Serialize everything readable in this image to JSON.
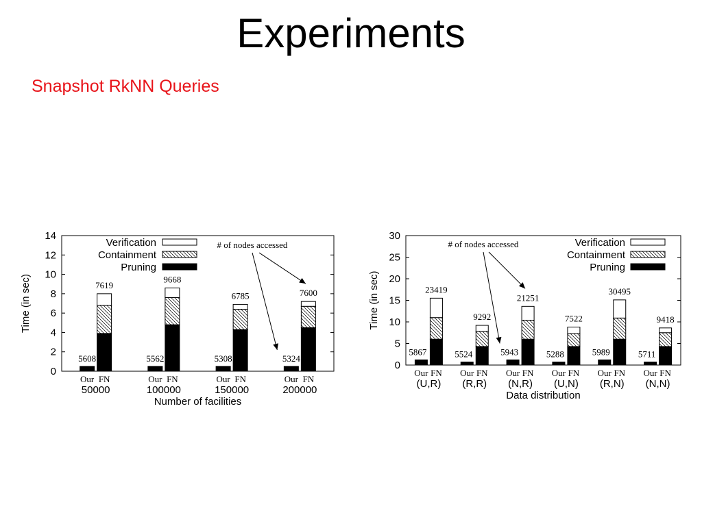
{
  "slide": {
    "title": "Experiments",
    "subtitle": "Snapshot RkNN Queries"
  },
  "chart_data": [
    {
      "type": "bar",
      "stacked": true,
      "xlabel": "Number of facilities",
      "ylabel": "Time (in sec)",
      "ylim": [
        0,
        14
      ],
      "yticks": [
        0,
        2,
        4,
        6,
        8,
        10,
        12,
        14
      ],
      "categories": [
        "50000",
        "100000",
        "150000",
        "200000"
      ],
      "bar_labels": [
        "Our",
        "FN"
      ],
      "legend": [
        "Verification",
        "Containment",
        "Pruning"
      ],
      "legend_position": "top",
      "annotation": "# of nodes accessed",
      "groups": [
        {
          "category": "50000",
          "our": {
            "pruning": 0.5,
            "nodes": "5608"
          },
          "fn": {
            "pruning": 3.9,
            "containment": 2.9,
            "verification": 1.2,
            "nodes": "7619"
          }
        },
        {
          "category": "100000",
          "our": {
            "pruning": 0.5,
            "nodes": "5562"
          },
          "fn": {
            "pruning": 4.8,
            "containment": 2.8,
            "verification": 1.0,
            "nodes": "9668"
          }
        },
        {
          "category": "150000",
          "our": {
            "pruning": 0.5,
            "nodes": "5308"
          },
          "fn": {
            "pruning": 4.3,
            "containment": 2.1,
            "verification": 0.5,
            "nodes": "6785"
          }
        },
        {
          "category": "200000",
          "our": {
            "pruning": 0.5,
            "nodes": "5324"
          },
          "fn": {
            "pruning": 4.5,
            "containment": 2.2,
            "verification": 0.5,
            "nodes": "7600"
          }
        }
      ]
    },
    {
      "type": "bar",
      "stacked": true,
      "xlabel": "Data distribution",
      "ylabel": "Time (in sec)",
      "ylim": [
        0,
        30
      ],
      "yticks": [
        0,
        5,
        10,
        15,
        20,
        25,
        30
      ],
      "categories": [
        "(U,R)",
        "(R,R)",
        "(N,R)",
        "(U,N)",
        "(R,N)",
        "(N,N)"
      ],
      "bar_labels": [
        "Our",
        "FN"
      ],
      "legend": [
        "Verification",
        "Containment",
        "Pruning"
      ],
      "legend_position": "top-right",
      "annotation": "# of nodes accessed",
      "groups": [
        {
          "category": "(U,R)",
          "our": {
            "pruning": 1.2,
            "nodes": "5867"
          },
          "fn": {
            "pruning": 6.0,
            "containment": 5.0,
            "verification": 4.5,
            "nodes": "23419"
          }
        },
        {
          "category": "(R,R)",
          "our": {
            "pruning": 0.7,
            "nodes": "5524"
          },
          "fn": {
            "pruning": 4.3,
            "containment": 3.5,
            "verification": 1.4,
            "nodes": "9292"
          }
        },
        {
          "category": "(N,R)",
          "our": {
            "pruning": 1.2,
            "nodes": "5943"
          },
          "fn": {
            "pruning": 6.0,
            "containment": 4.4,
            "verification": 3.2,
            "nodes": "21251"
          }
        },
        {
          "category": "(U,N)",
          "our": {
            "pruning": 0.7,
            "nodes": "5288"
          },
          "fn": {
            "pruning": 4.3,
            "containment": 3.0,
            "verification": 1.5,
            "nodes": "7522"
          }
        },
        {
          "category": "(R,N)",
          "our": {
            "pruning": 1.2,
            "nodes": "5989"
          },
          "fn": {
            "pruning": 6.0,
            "containment": 4.9,
            "verification": 4.2,
            "nodes": "30495"
          }
        },
        {
          "category": "(N,N)",
          "our": {
            "pruning": 0.7,
            "nodes": "5711"
          },
          "fn": {
            "pruning": 4.3,
            "containment": 3.2,
            "verification": 1.1,
            "nodes": "9418"
          }
        }
      ]
    }
  ]
}
